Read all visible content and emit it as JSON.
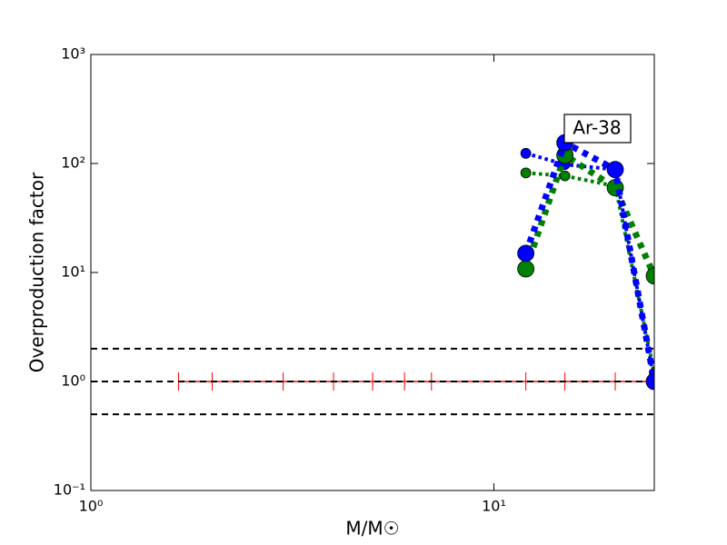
{
  "chart_data": {
    "type": "line",
    "xlabel": "M/M☉",
    "ylabel": "Overproduction factor",
    "annotation": "Ar-38",
    "xscale": "log",
    "yscale": "log",
    "xlim": [
      1,
      25
    ],
    "ylim": [
      0.1,
      1000
    ],
    "xticks": [
      {
        "value": 1,
        "label": "10⁰"
      },
      {
        "value": 10,
        "label": "10¹"
      }
    ],
    "yticks": [
      {
        "value": 0.1,
        "label": "10⁻¹"
      },
      {
        "value": 1,
        "label": "10⁰"
      },
      {
        "value": 10,
        "label": "10¹"
      },
      {
        "value": 100,
        "label": "10²"
      },
      {
        "value": 1000,
        "label": "10³"
      }
    ],
    "hlines": [
      2,
      1,
      0.5
    ],
    "hline_color": "#000000",
    "series": [
      {
        "color": "#ff0000",
        "marker": "tick",
        "x": [
          1.65,
          2,
          3,
          4,
          5,
          6,
          7,
          12,
          15,
          20,
          25
        ],
        "values": [
          1,
          1,
          1,
          1,
          1,
          1,
          1,
          1,
          1,
          1,
          1
        ]
      },
      {
        "color": "#008000",
        "marker": "small",
        "x": [
          12,
          15,
          20,
          25
        ],
        "values": [
          82,
          77,
          62,
          1.2
        ]
      },
      {
        "color": "#0000ff",
        "marker": "small",
        "x": [
          12,
          15,
          20,
          25
        ],
        "values": [
          124,
          98,
          88,
          1.0
        ]
      },
      {
        "color": "#008000",
        "marker": "large",
        "x": [
          12,
          15,
          20,
          25
        ],
        "values": [
          10.8,
          119,
          60,
          9.3
        ]
      },
      {
        "color": "#0000ff",
        "marker": "large",
        "x": [
          12,
          15,
          20,
          25
        ],
        "values": [
          15,
          155,
          88,
          1.0
        ]
      }
    ]
  }
}
